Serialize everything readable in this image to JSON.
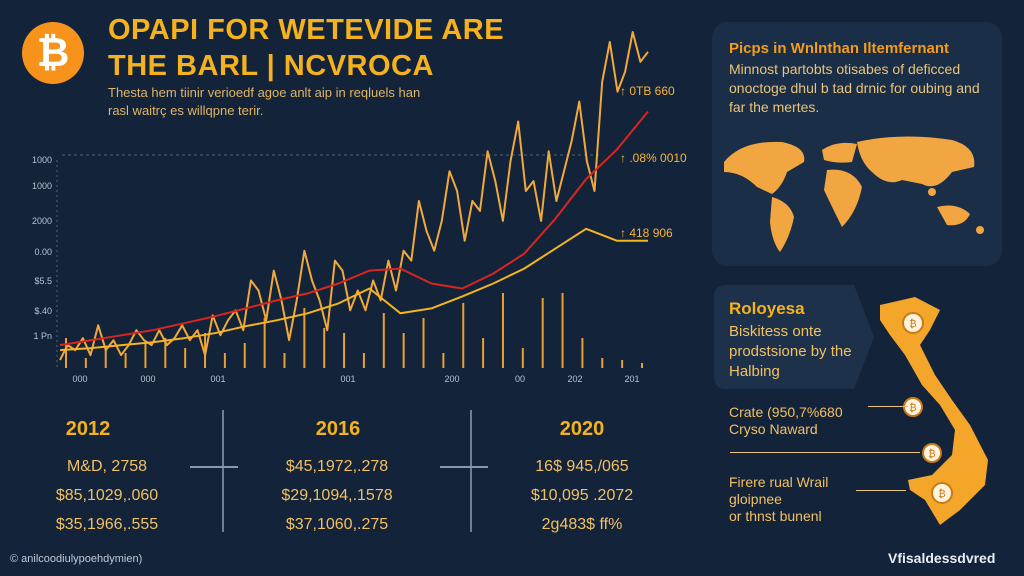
{
  "header": {
    "logo_icon": "bitcoin-icon",
    "logo_glyph": "₿",
    "title_line1": "OPAPI FOR WETEVIDE ARE",
    "title_line2": "THE BARL | NCVROCA",
    "subtitle": "Thesta hem tiinir verioedf agoe anlt aip in reqluels han rasl waitrç es willqpne terir."
  },
  "chart_data": {
    "type": "line",
    "y_ticks": [
      "1000",
      "1000",
      "2000",
      "0.00",
      "$5.5",
      "$.40",
      "1 Pn"
    ],
    "x_ticks": [
      "000",
      "000",
      "001",
      "001",
      "200",
      "00",
      "202",
      "201"
    ],
    "annotations": [
      "↑ 0TB 660",
      "↑ .08% 0010",
      "↑ 418 906"
    ],
    "ylim": [
      0,
      340
    ],
    "grid": false,
    "colors": {
      "price": "#f2a93b",
      "ma_fast": "#d8261e",
      "ma_slow": "#f5b51c",
      "volume": "#e9a030"
    },
    "series": [
      {
        "key": "price",
        "values": [
          8,
          23,
          18,
          30,
          13,
          43,
          18,
          28,
          13,
          23,
          38,
          28,
          23,
          38,
          23,
          30,
          43,
          28,
          38,
          13,
          53,
          33,
          48,
          58,
          38,
          88,
          78,
          48,
          98,
          68,
          28,
          68,
          118,
          88,
          68,
          38,
          108,
          98,
          58,
          78,
          58,
          88,
          68,
          108,
          78,
          118,
          108,
          168,
          138,
          118,
          148,
          198,
          178,
          128,
          168,
          158,
          218,
          188,
          148,
          208,
          248,
          178,
          188,
          148,
          218,
          168,
          198,
          228,
          268,
          208,
          178,
          288,
          328,
          278,
          298,
          338,
          308,
          318
        ]
      },
      {
        "key": "ma_fast",
        "values": [
          23,
          28,
          33,
          38,
          45,
          52,
          60,
          68,
          75,
          85,
          98,
          100,
          85,
          80,
          95,
          115,
          150,
          190,
          220,
          258
        ]
      },
      {
        "key": "ma_slow",
        "values": [
          18,
          20,
          23,
          26,
          30,
          35,
          42,
          48,
          55,
          65,
          80,
          55,
          60,
          72,
          85,
          100,
          120,
          140,
          128,
          128
        ]
      },
      {
        "key": "volume",
        "values": [
          30,
          10,
          20,
          15,
          25,
          30,
          20,
          35,
          15,
          25,
          50,
          15,
          60,
          40,
          35,
          15,
          55,
          35,
          50,
          15,
          65,
          30,
          75,
          20,
          70,
          75,
          30,
          10,
          8,
          5
        ]
      }
    ]
  },
  "panel_world": {
    "title": "Picps in Wnlnthan Iltemfernant",
    "body": "Minnost partobts otisabes of deficced onoctoge dhul b tad drnic for oubing and far the mertes.",
    "map_icon": "world-map-icon"
  },
  "panel_country": {
    "title": "Roloyesa",
    "body": "Biskitess onte prodstsione by the Halbing",
    "map_icon": "vietnam-map-icon",
    "notes": [
      {
        "text": "Crate (950,7%680\nCryso Naward"
      },
      {
        "text": ""
      },
      {
        "text": "Firere rual Wrail\ngloipnee\nor thnst bunenl"
      }
    ]
  },
  "timeline": [
    {
      "year": "2012",
      "values": [
        "M&D, 2758",
        "$85,1029,.060",
        "$35,1966,.555"
      ]
    },
    {
      "year": "2016",
      "values": [
        "$45,1972,.278",
        "$29,1094,.1578",
        "$37,1060,.275"
      ]
    },
    {
      "year": "2020",
      "values": [
        "16$ 945,/065",
        "$10,095 .2072",
        "2g483$ ff%"
      ]
    }
  ],
  "footer": {
    "credit": "© anilcoodiulypoehdymien)",
    "brand": "Vfisaldessdvred"
  }
}
